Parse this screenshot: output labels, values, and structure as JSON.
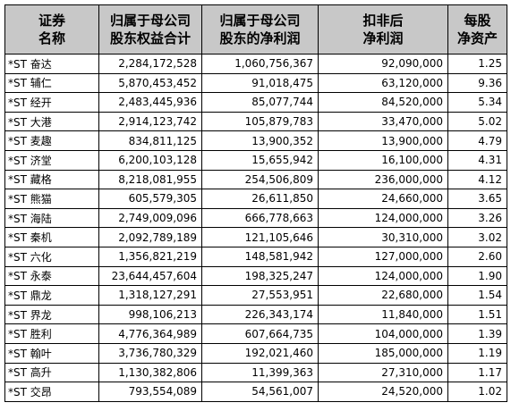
{
  "table": {
    "header": [
      [
        "证券",
        "名称"
      ],
      [
        "归属于母公司",
        "股东权益合计"
      ],
      [
        "归属于母公司",
        "股东的净利润"
      ],
      [
        "扣非后",
        "净利润"
      ],
      [
        "每股",
        "净资产"
      ]
    ],
    "rows": [
      [
        "*ST 奋达",
        "2,284,172,528",
        "1,060,756,367",
        "92,090,000",
        "1.25"
      ],
      [
        "*ST 辅仁",
        "5,870,453,452",
        "91,018,475",
        "63,120,000",
        "9.36"
      ],
      [
        "*ST 经开",
        "2,483,445,936",
        "85,077,744",
        "84,520,000",
        "5.34"
      ],
      [
        "*ST 大港",
        "2,914,123,742",
        "105,879,783",
        "33,470,000",
        "5.02"
      ],
      [
        "*ST 麦趣",
        "834,811,125",
        "13,900,352",
        "13,900,000",
        "4.79"
      ],
      [
        "*ST 济堂",
        "6,200,103,128",
        "15,655,942",
        "16,100,000",
        "4.31"
      ],
      [
        "*ST 藏格",
        "8,218,081,955",
        "254,506,809",
        "236,000,000",
        "4.12"
      ],
      [
        "*ST 熊猫",
        "605,579,305",
        "26,611,850",
        "24,660,000",
        "3.65"
      ],
      [
        "*ST 海陆",
        "2,749,009,096",
        "666,778,663",
        "124,000,000",
        "3.26"
      ],
      [
        "*ST 秦机",
        "2,092,789,189",
        "121,105,646",
        "30,310,000",
        "3.02"
      ],
      [
        "*ST 六化",
        "1,356,821,219",
        "148,581,942",
        "127,000,000",
        "2.60"
      ],
      [
        "*ST 永泰",
        "23,644,457,604",
        "198,325,247",
        "124,000,000",
        "1.90"
      ],
      [
        "*ST 鼎龙",
        "1,318,127,291",
        "27,553,951",
        "22,680,000",
        "1.54"
      ],
      [
        "*ST 界龙",
        "998,106,213",
        "226,343,174",
        "11,840,000",
        "1.51"
      ],
      [
        "*ST 胜利",
        "4,776,364,989",
        "607,664,735",
        "104,000,000",
        "1.39"
      ],
      [
        "*ST 翰叶",
        "3,736,780,329",
        "192,021,460",
        "185,000,000",
        "1.19"
      ],
      [
        "*ST 高升",
        "1,130,382,806",
        "11,399,363",
        "27,310,000",
        "1.17"
      ],
      [
        "*ST 交昂",
        "793,554,089",
        "54,561,007",
        "24,520,000",
        "1.02"
      ]
    ]
  }
}
